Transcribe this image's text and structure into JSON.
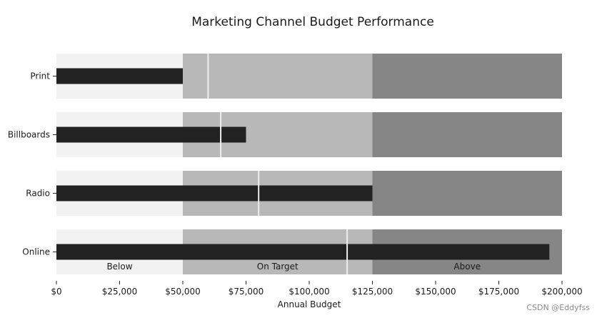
{
  "chart_data": {
    "type": "bar",
    "subtype": "bullet",
    "orientation": "horizontal",
    "title": "Marketing Channel Budget Performance",
    "xlabel": "Annual Budget",
    "ylabel": "",
    "xlim": [
      0,
      200000
    ],
    "x_ticks": [
      0,
      25000,
      50000,
      75000,
      100000,
      125000,
      150000,
      175000,
      200000
    ],
    "x_tick_labels": [
      "$0",
      "$25,000",
      "$50,000",
      "$75,000",
      "$100,000",
      "$125,000",
      "$150,000",
      "$175,000",
      "$200,000"
    ],
    "categories": [
      "Print",
      "Billboards",
      "Radio",
      "Online"
    ],
    "values": [
      50000,
      75000,
      125000,
      195000
    ],
    "targets": [
      60000,
      65000,
      80000,
      115000
    ],
    "ranges": [
      {
        "name": "Below",
        "from": 0,
        "to": 50000,
        "color": "#f2f2f2"
      },
      {
        "name": "On Target",
        "from": 50000,
        "to": 125000,
        "color": "#b8b8b8"
      },
      {
        "name": "Above",
        "from": 125000,
        "to": 200000,
        "color": "#868686"
      }
    ],
    "bar_color": "#222222",
    "target_color": "#eeeeee",
    "range_labels_on_category": "Online",
    "grid": false
  },
  "watermark": "CSDN @Eddyfss"
}
